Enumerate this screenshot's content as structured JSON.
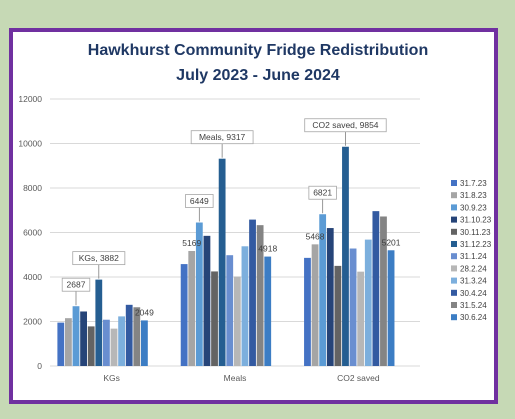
{
  "chart_data": {
    "type": "bar",
    "title": [
      "Hawkhurst Community Fridge Redistribution",
      "July 2023 - June 2024"
    ],
    "categories": [
      "KGs",
      "Meals",
      "CO2 saved"
    ],
    "ylim": [
      0,
      12000
    ],
    "yticks": [
      0,
      2000,
      4000,
      6000,
      8000,
      10000,
      12000
    ],
    "grid": true,
    "legend_position": "right",
    "series": [
      {
        "name": "31.7.23",
        "color": "#4472c4",
        "values": [
          1950,
          4580,
          4860
        ]
      },
      {
        "name": "31.8.23",
        "color": "#a5a5a5",
        "values": [
          2150,
          5169,
          5468
        ]
      },
      {
        "name": "30.9.23",
        "color": "#5b9bd5",
        "values": [
          2687,
          6449,
          6821
        ]
      },
      {
        "name": "31.10.23",
        "color": "#264478",
        "values": [
          2450,
          5850,
          6200
        ]
      },
      {
        "name": "30.11.23",
        "color": "#636363",
        "values": [
          1780,
          4250,
          4500
        ]
      },
      {
        "name": "31.12.23",
        "color": "#255e91",
        "values": [
          3882,
          9317,
          9854
        ]
      },
      {
        "name": "31.1.24",
        "color": "#698ed0",
        "values": [
          2080,
          4980,
          5280
        ]
      },
      {
        "name": "28.2.24",
        "color": "#b7b7b7",
        "values": [
          1680,
          4020,
          4240
        ]
      },
      {
        "name": "31.3.24",
        "color": "#7cafdd",
        "values": [
          2230,
          5380,
          5680
        ]
      },
      {
        "name": "30.4.24",
        "color": "#335aa1",
        "values": [
          2750,
          6580,
          6960
        ]
      },
      {
        "name": "31.5.24",
        "color": "#848484",
        "values": [
          2640,
          6330,
          6720
        ]
      },
      {
        "name": "30.6.24",
        "color": "#3c7dc4",
        "values": [
          2049,
          4918,
          5201
        ]
      }
    ],
    "data_labels": [
      {
        "series": 2,
        "category": 0,
        "text": "2687",
        "callout": true
      },
      {
        "series": 5,
        "category": 0,
        "text": "KGs, 3882",
        "callout": true
      },
      {
        "series": 11,
        "category": 0,
        "text": "2049",
        "callout": false
      },
      {
        "series": 1,
        "category": 1,
        "text": "5169",
        "callout": false
      },
      {
        "series": 2,
        "category": 1,
        "text": "6449",
        "callout": true
      },
      {
        "series": 5,
        "category": 1,
        "text": "Meals, 9317",
        "callout": true
      },
      {
        "series": 11,
        "category": 1,
        "text": "4918",
        "callout": false
      },
      {
        "series": 1,
        "category": 2,
        "text": "5468",
        "callout": false
      },
      {
        "series": 2,
        "category": 2,
        "text": "6821",
        "callout": true
      },
      {
        "series": 5,
        "category": 2,
        "text": "CO2 saved, 9854",
        "callout": true
      },
      {
        "series": 11,
        "category": 2,
        "text": "5201",
        "callout": false
      }
    ]
  }
}
